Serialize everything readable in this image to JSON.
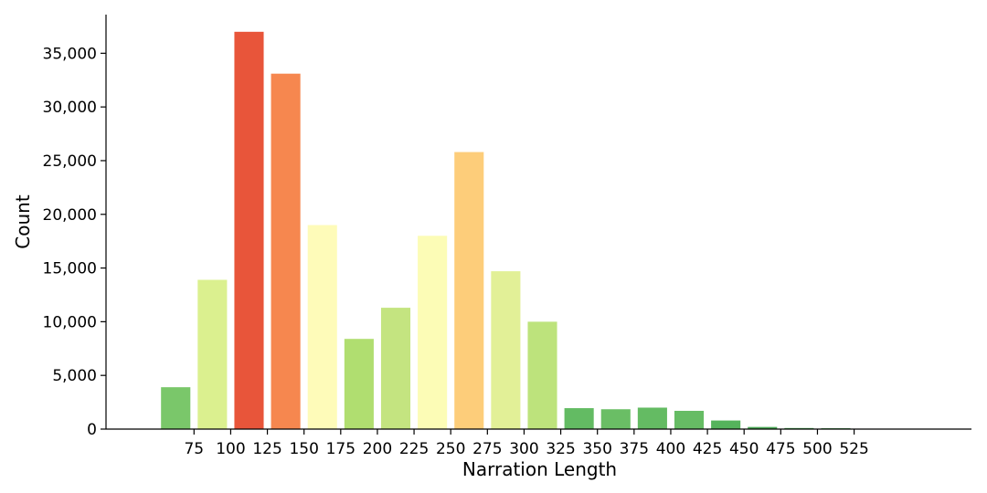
{
  "chart_data": {
    "type": "bar",
    "title": "",
    "xlabel": "Narration Length",
    "ylabel": "Count",
    "x_ticks": [
      "75",
      "100",
      "125",
      "150",
      "175",
      "200",
      "225",
      "250",
      "275",
      "300",
      "325",
      "350",
      "375",
      "400",
      "425",
      "450",
      "475",
      "500",
      "525"
    ],
    "y_ticks": [
      "0",
      "5,000",
      "10,000",
      "15,000",
      "20,000",
      "25,000",
      "30,000",
      "35,000"
    ],
    "y_tick_values": [
      0,
      5000,
      10000,
      15000,
      20000,
      25000,
      30000,
      35000
    ],
    "ylim": [
      0,
      38600
    ],
    "xlim": [
      15,
      605
    ],
    "grid": false,
    "bar_width": 20,
    "x": [
      62.5,
      87.5,
      112.5,
      137.5,
      162.5,
      187.5,
      212.5,
      237.5,
      262.5,
      287.5,
      312.5,
      337.5,
      362.5,
      387.5,
      412.5,
      437.5,
      462.5,
      487.5,
      512.5,
      537.5
    ],
    "values": [
      3900,
      13900,
      37000,
      33100,
      19000,
      8400,
      11300,
      18000,
      25800,
      14700,
      10000,
      1950,
      1850,
      2000,
      1700,
      800,
      200,
      100,
      80,
      0
    ],
    "colors": [
      "#7ac76a",
      "#dbf08f",
      "#e8553a",
      "#f6874f",
      "#fefbb9",
      "#b0de70",
      "#c4e480",
      "#fcfcb6",
      "#fdcd7a",
      "#e2f097",
      "#bde37c",
      "#63bb63",
      "#6abe65",
      "#64bb63",
      "#66bc64",
      "#55b35c",
      "#4aa857",
      "#4aa857",
      "#4aa857",
      "#4aa857"
    ]
  }
}
